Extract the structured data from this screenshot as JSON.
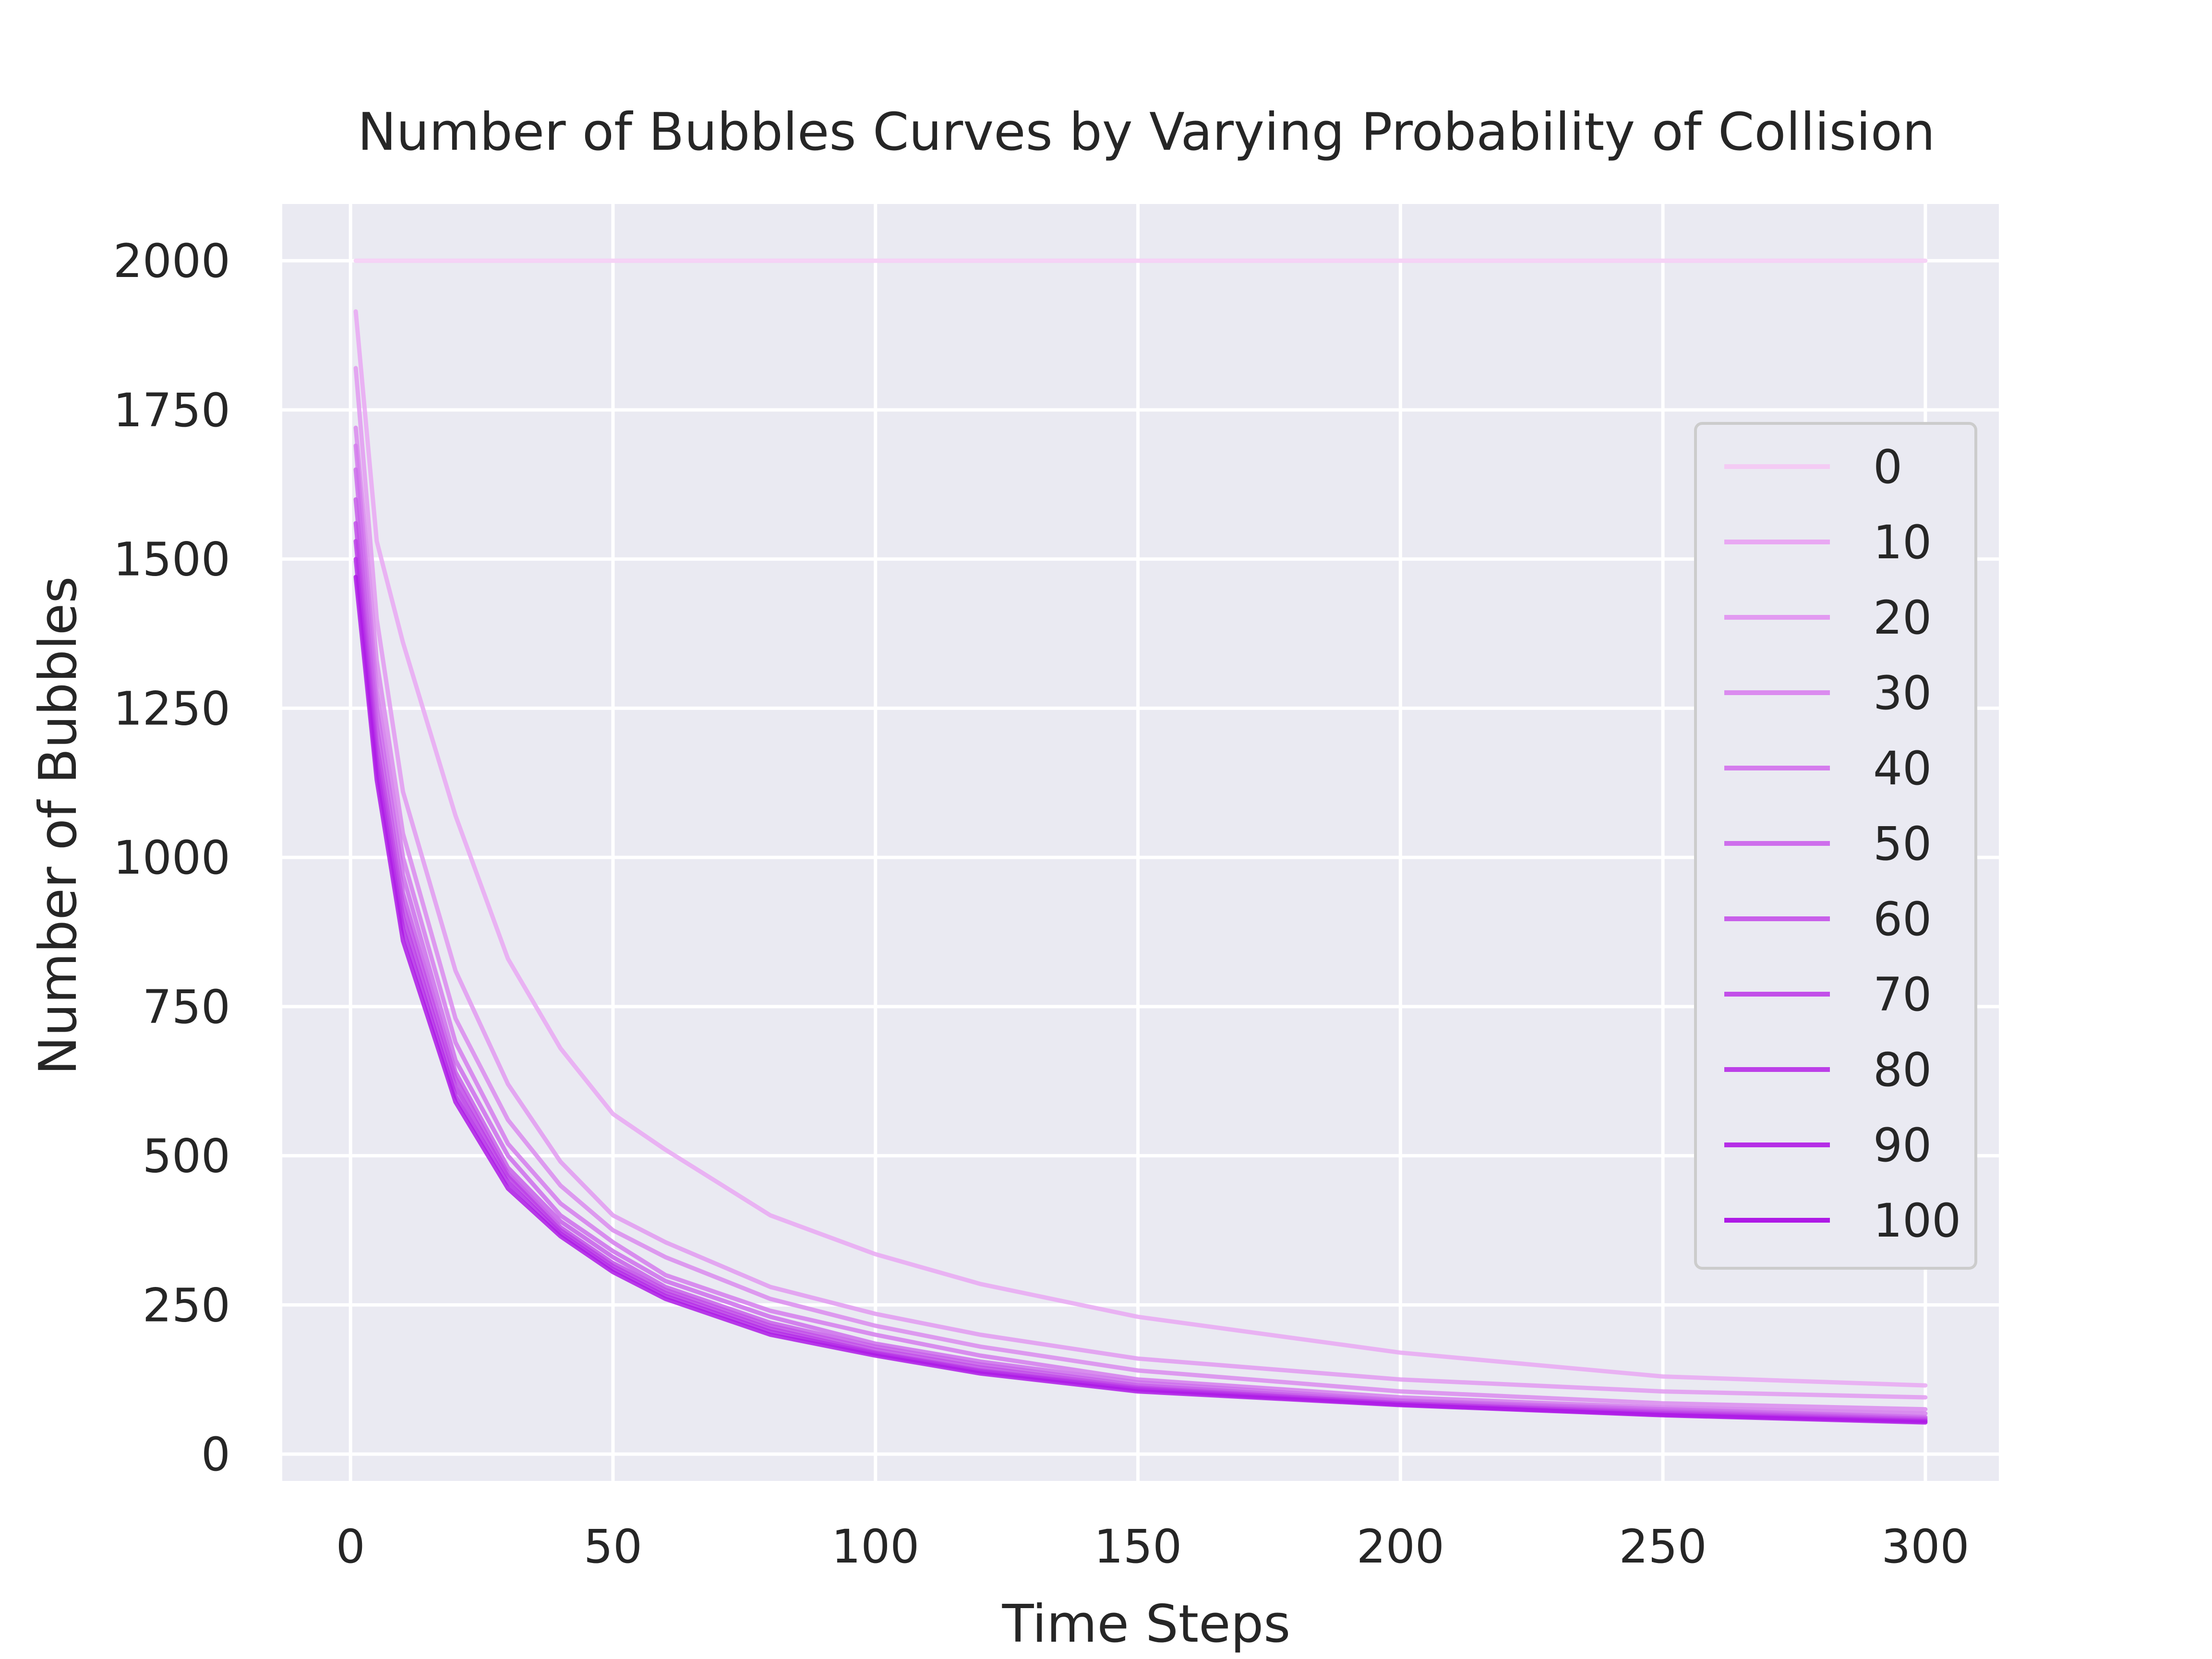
{
  "chart_data": {
    "type": "line",
    "title": "Number of Bubbles Curves by Varying Probability of Collision",
    "xlabel": "Time Steps",
    "ylabel": "Number of Bubbles",
    "xlim": [
      -13,
      314
    ],
    "ylim": [
      -45,
      2095
    ],
    "xticks": [
      0,
      50,
      100,
      150,
      200,
      250,
      300
    ],
    "yticks": [
      0,
      250,
      500,
      750,
      1000,
      1250,
      1500,
      1750,
      2000
    ],
    "grid": true,
    "background": "#eaeaf2",
    "legend_position": "right",
    "series": [
      {
        "name": "0",
        "color": "#f4cbf4",
        "x": [
          1,
          300
        ],
        "y": [
          2000,
          2000
        ]
      },
      {
        "name": "10",
        "color": "#e9a8f3",
        "x": [
          1,
          5,
          10,
          20,
          30,
          40,
          50,
          60,
          80,
          100,
          120,
          150,
          200,
          250,
          300
        ],
        "y": [
          1915,
          1530,
          1360,
          1070,
          830,
          680,
          570,
          510,
          400,
          335,
          285,
          230,
          170,
          130,
          115
        ]
      },
      {
        "name": "20",
        "color": "#e29af1",
        "x": [
          1,
          5,
          10,
          20,
          30,
          40,
          50,
          60,
          80,
          100,
          120,
          150,
          200,
          250,
          300
        ],
        "y": [
          1820,
          1400,
          1110,
          810,
          620,
          490,
          400,
          355,
          280,
          235,
          200,
          160,
          125,
          105,
          95
        ]
      },
      {
        "name": "30",
        "color": "#db8bef",
        "x": [
          1,
          5,
          10,
          20,
          30,
          40,
          50,
          60,
          80,
          100,
          120,
          150,
          200,
          250,
          300
        ],
        "y": [
          1720,
          1330,
          1040,
          730,
          560,
          450,
          375,
          330,
          260,
          215,
          180,
          140,
          105,
          85,
          75
        ]
      },
      {
        "name": "40",
        "color": "#d57ced",
        "x": [
          1,
          5,
          10,
          20,
          30,
          40,
          50,
          60,
          80,
          100,
          120,
          150,
          200,
          250,
          300
        ],
        "y": [
          1690,
          1280,
          1000,
          690,
          520,
          420,
          355,
          300,
          240,
          200,
          165,
          125,
          95,
          78,
          68
        ]
      },
      {
        "name": "50",
        "color": "#ce6eec",
        "x": [
          1,
          5,
          10,
          20,
          30,
          40,
          50,
          60,
          80,
          100,
          120,
          150,
          200,
          250,
          300
        ],
        "y": [
          1650,
          1250,
          970,
          660,
          500,
          400,
          340,
          290,
          230,
          185,
          155,
          120,
          90,
          75,
          62
        ]
      },
      {
        "name": "60",
        "color": "#c85fea",
        "x": [
          1,
          5,
          10,
          20,
          30,
          40,
          50,
          60,
          80,
          100,
          120,
          150,
          200,
          250,
          300
        ],
        "y": [
          1600,
          1220,
          940,
          640,
          480,
          390,
          330,
          280,
          220,
          180,
          150,
          115,
          88,
          72,
          60
        ]
      },
      {
        "name": "70",
        "color": "#c24fe9",
        "x": [
          1,
          5,
          10,
          20,
          30,
          40,
          50,
          60,
          80,
          100,
          120,
          150,
          200,
          250,
          300
        ],
        "y": [
          1560,
          1190,
          920,
          630,
          470,
          380,
          320,
          275,
          215,
          175,
          145,
          112,
          85,
          70,
          58
        ]
      },
      {
        "name": "80",
        "color": "#bc3fe8",
        "x": [
          1,
          5,
          10,
          20,
          30,
          40,
          50,
          60,
          80,
          100,
          120,
          150,
          200,
          250,
          300
        ],
        "y": [
          1530,
          1170,
          900,
          615,
          465,
          375,
          315,
          270,
          210,
          170,
          140,
          110,
          85,
          68,
          56
        ]
      },
      {
        "name": "90",
        "color": "#b52ee7",
        "x": [
          1,
          5,
          10,
          20,
          30,
          40,
          50,
          60,
          80,
          100,
          120,
          150,
          200,
          250,
          300
        ],
        "y": [
          1500,
          1150,
          880,
          600,
          455,
          370,
          310,
          265,
          205,
          168,
          138,
          108,
          83,
          66,
          55
        ]
      },
      {
        "name": "100",
        "color": "#ae1ae6",
        "x": [
          1,
          5,
          10,
          20,
          30,
          40,
          50,
          60,
          80,
          100,
          120,
          150,
          200,
          250,
          300
        ],
        "y": [
          1470,
          1130,
          860,
          590,
          445,
          365,
          305,
          260,
          200,
          165,
          135,
          105,
          82,
          65,
          53
        ]
      }
    ]
  }
}
